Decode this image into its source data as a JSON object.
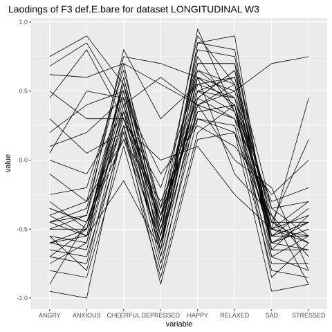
{
  "chart_data": {
    "type": "line",
    "title": "Laodings of F3 def.E.bare for dataset LONGITUDINAL W3",
    "xlabel": "variable",
    "ylabel": "value",
    "categories": [
      "ANGRY",
      "ANXIOUS",
      "CHEERFUL",
      "DEPRESSED",
      "HAPPY",
      "RELAXED",
      "SAD",
      "STRESSED"
    ],
    "ylim": [
      -1.08,
      1.03
    ],
    "yticks": [
      -1.0,
      -0.5,
      0.0,
      0.5,
      1.0
    ],
    "ytick_labels": [
      "-1.0",
      "-0.5",
      "0.0",
      "0.5",
      "1.0"
    ],
    "grid": true,
    "legend": "none",
    "colors": {
      "panel": "#ebebeb",
      "grid": "#ffffff",
      "line": "#000000"
    },
    "series": [
      {
        "values": [
          0.75,
          0.9,
          0.55,
          -0.35,
          0.9,
          0.55,
          -0.55,
          -0.45
        ]
      },
      {
        "values": [
          0.68,
          0.85,
          0.4,
          -0.45,
          0.95,
          0.35,
          -0.6,
          -0.5
        ]
      },
      {
        "values": [
          0.62,
          0.6,
          0.7,
          -0.55,
          0.85,
          0.9,
          -0.65,
          -0.4
        ]
      },
      {
        "values": [
          0.5,
          0.3,
          0.3,
          -0.2,
          0.6,
          0.4,
          -0.45,
          -0.6
        ]
      },
      {
        "values": [
          0.3,
          0.05,
          0.2,
          -0.6,
          0.7,
          0.7,
          -0.7,
          -0.55
        ]
      },
      {
        "values": [
          0.1,
          0.2,
          0.45,
          -0.7,
          0.45,
          0.3,
          -0.3,
          -0.2
        ]
      },
      {
        "values": [
          0.0,
          -0.1,
          0.35,
          -0.4,
          0.4,
          0.5,
          0.7,
          0.75
        ]
      },
      {
        "values": [
          -0.1,
          -0.3,
          0.15,
          -0.3,
          0.3,
          0.2,
          -0.5,
          -0.3
        ]
      },
      {
        "values": [
          -0.3,
          -0.5,
          0.6,
          -0.5,
          0.5,
          0.6,
          -0.45,
          -0.6
        ]
      },
      {
        "values": [
          -0.35,
          -0.45,
          0.25,
          -0.65,
          0.55,
          0.45,
          -0.55,
          -0.45
        ]
      },
      {
        "values": [
          -0.4,
          -0.55,
          0.45,
          -0.6,
          0.35,
          0.4,
          -0.6,
          -0.5
        ]
      },
      {
        "values": [
          -0.45,
          -0.4,
          0.55,
          -0.45,
          0.65,
          0.55,
          -0.4,
          -0.7
        ]
      },
      {
        "values": [
          -0.5,
          -0.5,
          0.3,
          -0.55,
          0.5,
          0.35,
          -0.5,
          -0.4
        ]
      },
      {
        "values": [
          -0.55,
          -0.6,
          0.4,
          -0.7,
          0.45,
          0.65,
          -0.65,
          -0.65
        ]
      },
      {
        "values": [
          -0.6,
          -0.5,
          0.5,
          -0.5,
          0.6,
          0.5,
          -0.55,
          -0.55
        ]
      },
      {
        "values": [
          -0.65,
          -0.7,
          0.2,
          -0.8,
          0.4,
          0.3,
          -0.7,
          -0.8
        ]
      },
      {
        "values": [
          -0.7,
          -0.75,
          0.35,
          -0.75,
          0.3,
          0.25,
          -0.8,
          -0.85
        ]
      },
      {
        "values": [
          -0.75,
          -0.6,
          0.6,
          -0.4,
          0.7,
          0.7,
          -0.35,
          -0.3
        ]
      },
      {
        "values": [
          -0.8,
          -0.85,
          0.1,
          -0.85,
          0.2,
          0.4,
          -0.85,
          -0.6
        ]
      },
      {
        "values": [
          -0.95,
          -1.0,
          0.25,
          -0.9,
          0.15,
          0.2,
          -0.95,
          -0.9
        ]
      },
      {
        "values": [
          -0.9,
          -0.45,
          0.15,
          -0.6,
          0.5,
          0.45,
          -0.5,
          0.45
        ]
      },
      {
        "values": [
          -0.4,
          -0.3,
          0.75,
          0.7,
          0.6,
          -0.1,
          -0.4,
          -0.9
        ]
      },
      {
        "values": [
          -0.45,
          -0.35,
          0.7,
          0.55,
          0.4,
          0.0,
          -0.2,
          -0.8
        ]
      },
      {
        "values": [
          0.05,
          0.5,
          0.45,
          -0.1,
          0.25,
          0.1,
          -0.25,
          0.0
        ]
      },
      {
        "values": [
          -0.6,
          -0.55,
          -0.15,
          -0.65,
          0.85,
          0.8,
          -0.6,
          -0.5
        ]
      },
      {
        "values": [
          -0.5,
          -0.4,
          0.8,
          0.3,
          0.55,
          0.6,
          -0.5,
          -0.6
        ]
      },
      {
        "values": [
          -0.55,
          -0.8,
          0.25,
          0.0,
          0.1,
          -0.25,
          -0.5,
          -0.55
        ]
      },
      {
        "values": [
          0.2,
          0.4,
          0.5,
          -0.5,
          0.75,
          0.35,
          -0.6,
          -0.45
        ]
      },
      {
        "values": [
          -0.25,
          -0.2,
          0.65,
          -0.35,
          0.45,
          0.65,
          -0.45,
          0.15
        ]
      },
      {
        "values": [
          -0.35,
          -0.45,
          0.35,
          -0.4,
          0.35,
          0.4,
          -0.75,
          -0.75
        ]
      },
      {
        "values": [
          -0.45,
          -0.55,
          0.5,
          -0.55,
          0.8,
          0.75,
          -0.55,
          -0.35
        ]
      },
      {
        "values": [
          0.45,
          0.8,
          0.3,
          -0.45,
          0.65,
          0.45,
          -0.35,
          -0.55
        ]
      },
      {
        "values": [
          -0.6,
          -0.65,
          0.4,
          0.6,
          0.4,
          0.55,
          -0.6,
          -0.65
        ]
      },
      {
        "values": [
          -0.7,
          -0.5,
          0.55,
          -0.65,
          0.6,
          0.4,
          -0.45,
          -0.45
        ]
      }
    ]
  }
}
